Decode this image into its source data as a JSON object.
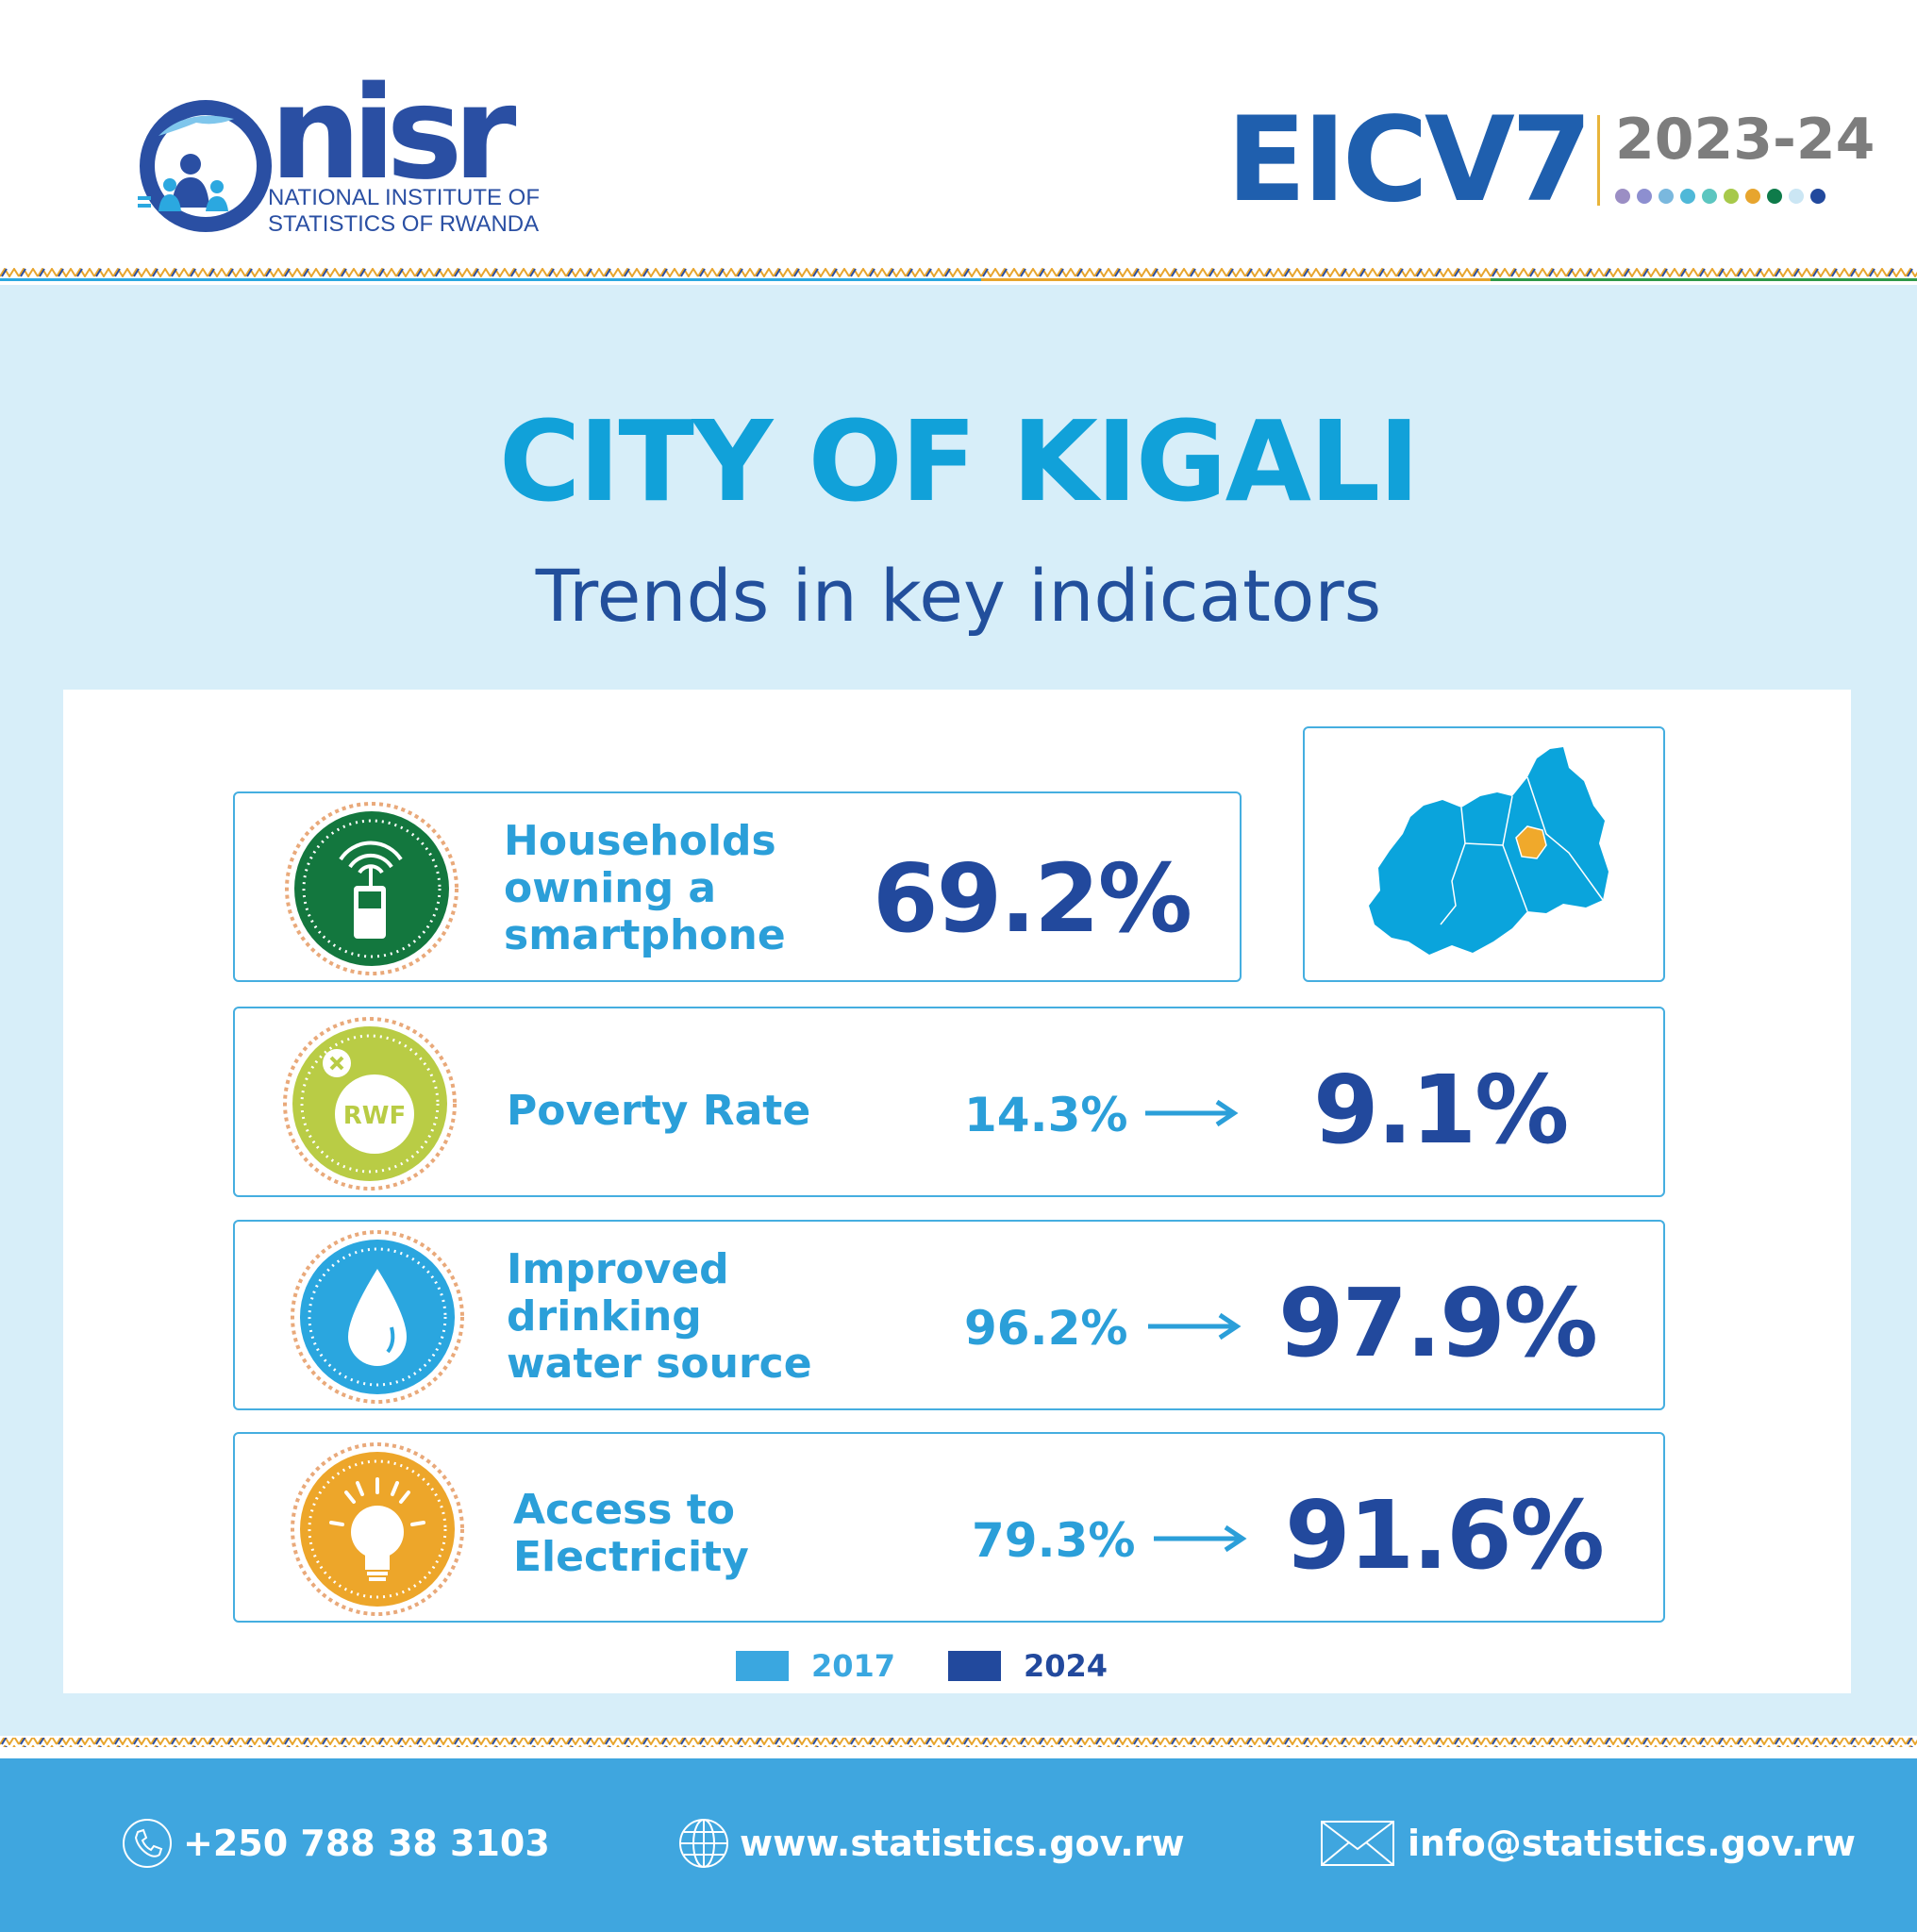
{
  "header": {
    "logo_word": "nisr",
    "logo_line1": "NATIONAL INSTITUTE OF",
    "logo_line2": "STATISTICS OF RWANDA",
    "survey": "EICV7",
    "years": "2023-24",
    "dot_colors": [
      "#9b8ec4",
      "#8d8fd0",
      "#7ab8de",
      "#4fb8d8",
      "#5cc6c0",
      "#a7c94a",
      "#e7a52e",
      "#0e7b4a",
      "#cbe6f4",
      "#22499d"
    ]
  },
  "main": {
    "title": "CITY OF KIGALI",
    "subtitle": "Trends in key indicators"
  },
  "indicators": [
    {
      "label": "Households\nowning a\nsmartphone",
      "value_2017": "",
      "value_2024": "69.2%",
      "icon": "smartphone-icon",
      "color": "#13773e"
    },
    {
      "label": "Poverty Rate",
      "value_2017": "14.3%",
      "value_2024": "9.1%",
      "icon": "rwf-coin-icon",
      "color": "#b9cc45",
      "icon_text": "RWF"
    },
    {
      "label": "Improved\ndrinking\nwater source",
      "value_2017": "96.2%",
      "value_2024": "97.9%",
      "icon": "water-drop-icon",
      "color": "#2aa6df"
    },
    {
      "label": "Access to\nElectricity",
      "value_2017": "79.3%",
      "value_2024": "91.6%",
      "icon": "light-bulb-icon",
      "color": "#eda62a"
    }
  ],
  "map": {
    "icon": "rwanda-map-icon",
    "highlight_color": "#f0a92b",
    "base_color": "#0aa4dc"
  },
  "legend": [
    {
      "label": "2017",
      "color": "#3aa7e0"
    },
    {
      "label": "2024",
      "color": "#22499d"
    }
  ],
  "footer": {
    "phone": "+250 788 38 3103",
    "website": "www.statistics.gov.rw",
    "email": "info@statistics.gov.rw"
  }
}
